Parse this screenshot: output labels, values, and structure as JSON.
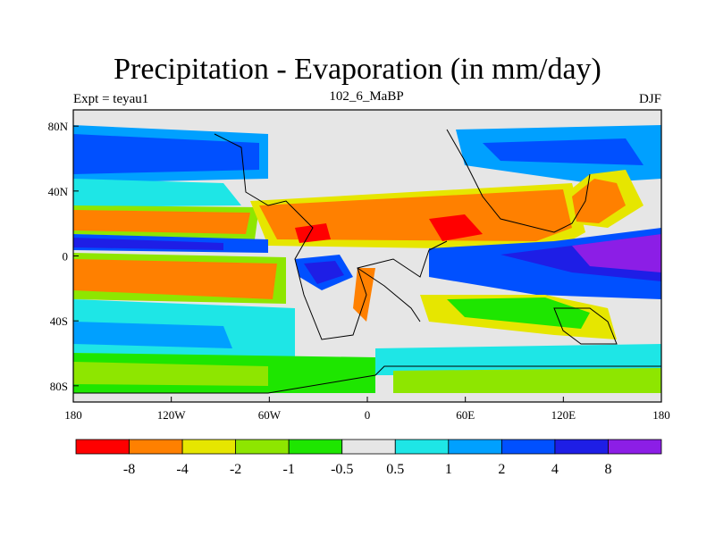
{
  "title": "Precipitation - Evaporation (in mm/day)",
  "subtitle": "102_6_MaBP",
  "left_label": "Expt = teyau1",
  "right_label": "DJF",
  "x_ticks": [
    "180",
    "120W",
    "60W",
    "0",
    "60E",
    "120E",
    "180"
  ],
  "y_ticks": [
    "80N",
    "40N",
    "0",
    "40S",
    "80S"
  ],
  "colorbar": {
    "colors": [
      "#ff0000",
      "#ff8000",
      "#e6e600",
      "#8ee600",
      "#1ee600",
      "#e6e6e6",
      "#1ee6e6",
      "#00a0ff",
      "#0050ff",
      "#1e1ee6",
      "#8c1ee6"
    ],
    "labels": [
      "-8",
      "-4",
      "-2",
      "-1",
      "-0.5",
      "0.5",
      "1",
      "2",
      "4",
      "8"
    ]
  },
  "map": {
    "type": "filled-contour-map",
    "lon_range": [
      -180,
      180
    ],
    "lat_range": [
      -90,
      90
    ],
    "x_tick_lons": [
      -180,
      -120,
      -60,
      0,
      60,
      120,
      180
    ],
    "y_tick_lats": [
      80,
      40,
      0,
      -40,
      -80
    ]
  }
}
